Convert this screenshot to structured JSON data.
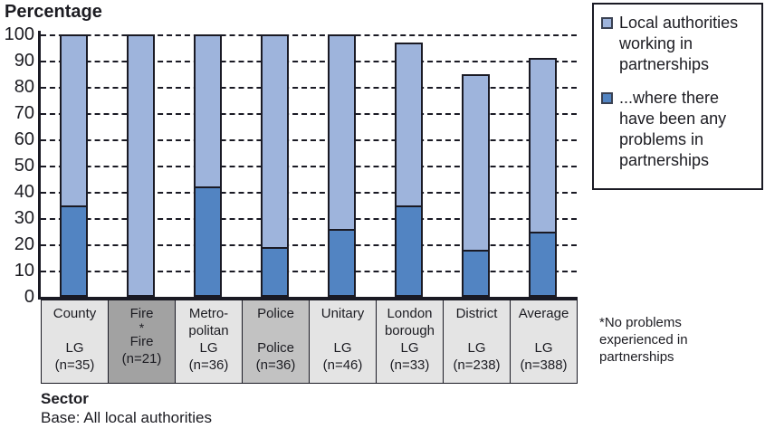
{
  "title": "Percentage",
  "colors": {
    "light_blue": "#9EB4DC",
    "dark_blue": "#5284C2",
    "outline": "#1A1A24",
    "text": "#1C1C22",
    "cell_light": "#E4E4E4",
    "cell_medium": "#C2C2C2",
    "cell_dark": "#A2A2A2"
  },
  "legend": {
    "items": [
      {
        "label": "Local authorities working in partnerships",
        "swatch": "light_blue"
      },
      {
        "label": "...where there have been any problems in partnerships",
        "swatch": "dark_blue"
      }
    ]
  },
  "footnote": "*No problems experienced in partnerships",
  "xlabel": "Sector",
  "base_note": "Base: All local authorities",
  "chart_data": {
    "type": "bar",
    "stacked": true,
    "title": "",
    "ylabel": "Percentage",
    "xlabel": "Sector",
    "ylim": [
      0,
      100
    ],
    "yticks": [
      100,
      90,
      80,
      70,
      60,
      50,
      40,
      30,
      20,
      10,
      0
    ],
    "grid": true,
    "legend_position": "right",
    "categories": [
      "County LG (n=35)",
      "Fire (n=21)",
      "Metropolitan LG (n=36)",
      "Police (n=36)",
      "Unitary LG (n=46)",
      "London borough LG (n=33)",
      "District LG (n=238)",
      "Average LG (n=388)"
    ],
    "series": [
      {
        "name": "Local authorities working in partnerships",
        "values": [
          100,
          100,
          100,
          100,
          100,
          97,
          85,
          91
        ]
      },
      {
        "name": "...where there have been any problems in partnerships",
        "values": [
          35,
          0,
          42,
          19,
          26,
          35,
          18,
          25
        ]
      }
    ]
  },
  "sector_cells": [
    {
      "shade": "light",
      "lines": [
        "County",
        "",
        "LG",
        "(n=35)"
      ]
    },
    {
      "shade": "dark",
      "lines": [
        "Fire",
        "*",
        "Fire",
        "(n=21)"
      ]
    },
    {
      "shade": "light",
      "lines": [
        "Metro-",
        "politan",
        "LG",
        "(n=36)"
      ]
    },
    {
      "shade": "medium",
      "lines": [
        "Police",
        "",
        "Police",
        "(n=36)"
      ]
    },
    {
      "shade": "light",
      "lines": [
        "Unitary",
        "",
        "LG",
        "(n=46)"
      ]
    },
    {
      "shade": "light",
      "lines": [
        "London",
        "borough",
        "LG",
        "(n=33)"
      ]
    },
    {
      "shade": "light",
      "lines": [
        "District",
        "",
        "LG",
        "(n=238)"
      ]
    },
    {
      "shade": "light",
      "lines": [
        "Average",
        "",
        "LG",
        "(n=388)"
      ]
    }
  ]
}
